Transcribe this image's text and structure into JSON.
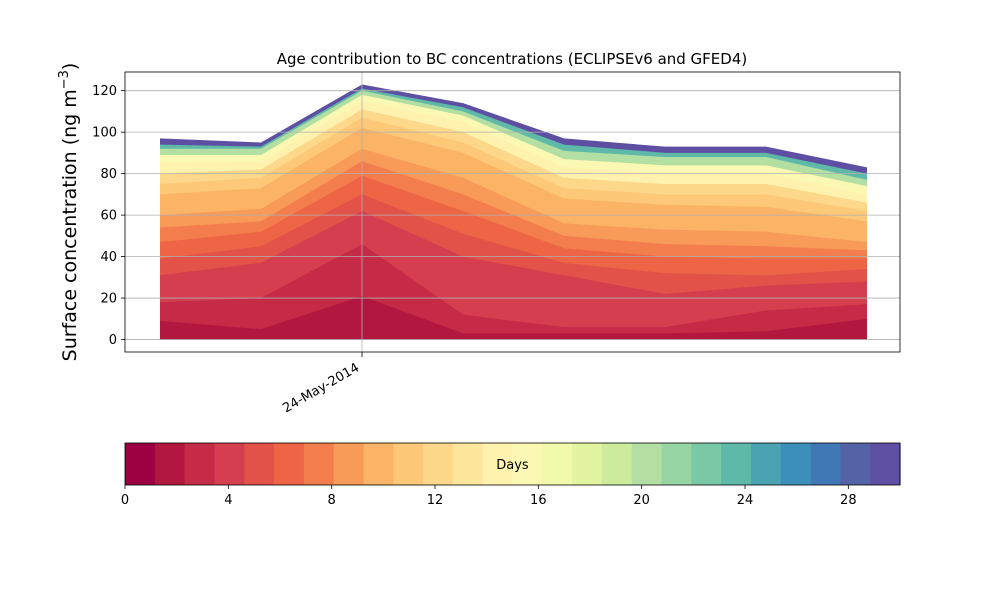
{
  "chart_data": {
    "type": "area",
    "title": "Age contribution to BC concentrations (ECLIPSEv6 and GFED4)",
    "ylabel": "Surface concentration (ng m",
    "ylabel_sup": "−3",
    "ylabel_close": ")",
    "xlabel": "",
    "x_tick_labels": [
      "24-May-2014"
    ],
    "x_count": 8,
    "x_labeled_index": 2,
    "ylim": [
      -6,
      129
    ],
    "y_ticks": [
      0,
      20,
      40,
      60,
      80,
      100,
      120
    ],
    "grid": true,
    "totals": [
      97,
      95,
      123,
      114,
      97,
      93,
      93,
      83
    ],
    "stacked_cumulative_levels": [
      {
        "day": 1,
        "values": [
          9,
          5,
          21,
          3,
          3,
          3,
          4,
          10
        ]
      },
      {
        "day": 2,
        "values": [
          18,
          20,
          46,
          12,
          6,
          6,
          14,
          17
        ]
      },
      {
        "day": 3,
        "values": [
          24,
          29,
          55,
          26,
          20,
          11,
          19,
          21
        ]
      },
      {
        "day": 4,
        "values": [
          31,
          37,
          62,
          40,
          31,
          22,
          26,
          28
        ]
      },
      {
        "day": 5,
        "values": [
          39,
          45,
          70,
          51,
          37,
          32,
          31,
          34
        ]
      },
      {
        "day": 6,
        "values": [
          47,
          52,
          79,
          62,
          44,
          40,
          39,
          39
        ]
      },
      {
        "day": 7,
        "values": [
          54,
          57,
          86,
          70,
          50,
          46,
          45,
          43
        ]
      },
      {
        "day": 8,
        "values": [
          60,
          63,
          92,
          78,
          56,
          53,
          52,
          47
        ]
      },
      {
        "day": 9,
        "values": [
          65,
          68,
          97,
          84,
          62,
          59,
          58,
          52
        ]
      },
      {
        "day": 10,
        "values": [
          70,
          73,
          102,
          90,
          68,
          65,
          64,
          57
        ]
      },
      {
        "day": 11,
        "values": [
          75,
          78,
          107,
          95,
          73,
          70,
          70,
          62
        ]
      },
      {
        "day": 12,
        "values": [
          80,
          82,
          111,
          100,
          78,
          75,
          75,
          66
        ]
      },
      {
        "day": 14,
        "values": [
          85,
          86,
          115,
          105,
          83,
          80,
          80,
          70
        ]
      },
      {
        "day": 16,
        "values": [
          89,
          89,
          118,
          108,
          87,
          84,
          84,
          74
        ]
      },
      {
        "day": 20,
        "values": [
          92,
          92,
          120,
          110,
          91,
          88,
          88,
          77
        ]
      },
      {
        "day": 24,
        "values": [
          94,
          93,
          121,
          112,
          94,
          90,
          90,
          80
        ]
      },
      {
        "day": 30,
        "values": [
          97,
          95,
          123,
          114,
          97,
          93,
          93,
          83
        ]
      }
    ],
    "colorbar": {
      "label": "Days",
      "range": [
        0,
        30
      ],
      "ticks": [
        0,
        4,
        8,
        12,
        16,
        20,
        24,
        28
      ],
      "tick_labels": [
        "0",
        "4",
        "8",
        "12",
        "16",
        "20",
        "24",
        "28"
      ],
      "colormap": "Spectral",
      "colors": [
        "#9e0142",
        "#b2183f",
        "#c52a46",
        "#d53e4f",
        "#e25249",
        "#ed6545",
        "#f47d4d",
        "#f89a58",
        "#fbb466",
        "#fdc877",
        "#fdd88b",
        "#fee69c",
        "#fff2ae",
        "#fbf8b4",
        "#f1f9aa",
        "#e3f4a0",
        "#cceb9d",
        "#b3e0a2",
        "#96d4a4",
        "#7ac8a5",
        "#5fb9a9",
        "#4aa3b2",
        "#3d8fbb",
        "#3f78b5",
        "#5463a6",
        "#5e4fa2"
      ]
    }
  }
}
